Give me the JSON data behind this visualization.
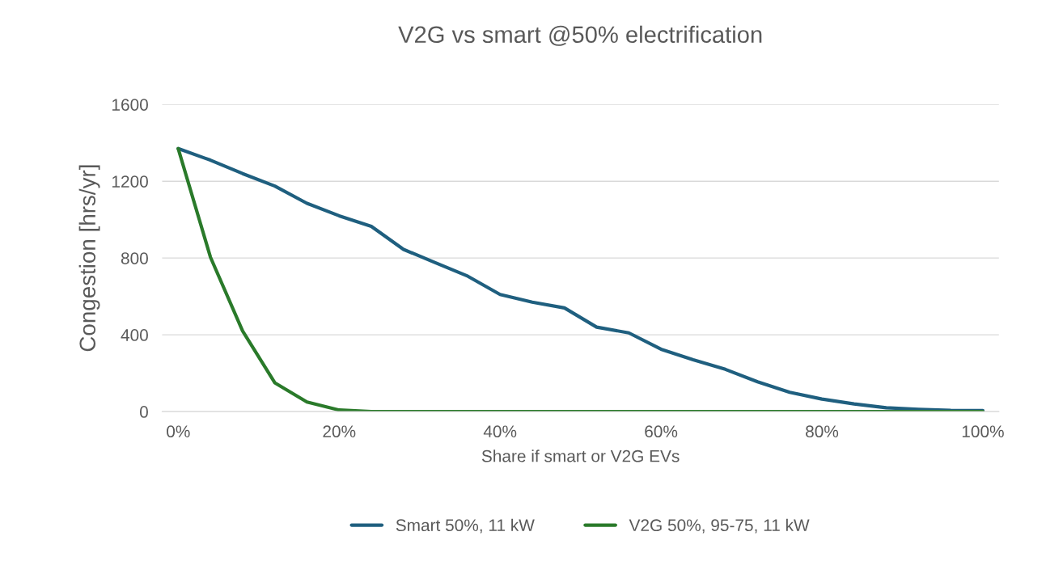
{
  "chart_data": {
    "type": "line",
    "title": "V2G vs smart @50% electrification",
    "xlabel": "Share if smart or V2G EVs",
    "ylabel": "Congestion [hrs/yr]",
    "x": [
      0,
      4,
      8,
      12,
      16,
      20,
      24,
      28,
      32,
      36,
      40,
      44,
      48,
      52,
      56,
      60,
      64,
      68,
      72,
      76,
      80,
      84,
      88,
      92,
      96,
      100
    ],
    "series": [
      {
        "name": "Smart 50%, 11 kW",
        "color": "#1f5f7f",
        "values": [
          1370,
          1310,
          1240,
          1175,
          1085,
          1020,
          965,
          845,
          775,
          705,
          610,
          570,
          540,
          440,
          410,
          325,
          270,
          220,
          155,
          100,
          65,
          40,
          20,
          12,
          6,
          5
        ]
      },
      {
        "name": "V2G 50%, 95-75, 11 kW",
        "color": "#2a7a2a",
        "values": [
          1370,
          805,
          420,
          150,
          50,
          8,
          0,
          0,
          0,
          0,
          0,
          0,
          0,
          0,
          0,
          0,
          0,
          0,
          0,
          0,
          0,
          0,
          0,
          0,
          0,
          0
        ]
      }
    ],
    "xlim": [
      -2,
      102
    ],
    "xticks": [
      {
        "value": 0,
        "label": "0%"
      },
      {
        "value": 20,
        "label": "20%"
      },
      {
        "value": 40,
        "label": "40%"
      },
      {
        "value": 60,
        "label": "60%"
      },
      {
        "value": 80,
        "label": "80%"
      },
      {
        "value": 100,
        "label": "100%"
      }
    ],
    "ylim": [
      0,
      1600
    ],
    "yticks": [
      0,
      400,
      800,
      1200,
      1600
    ],
    "grid": "y",
    "legend": "bottom",
    "marker": "none",
    "line_style": "solid"
  }
}
